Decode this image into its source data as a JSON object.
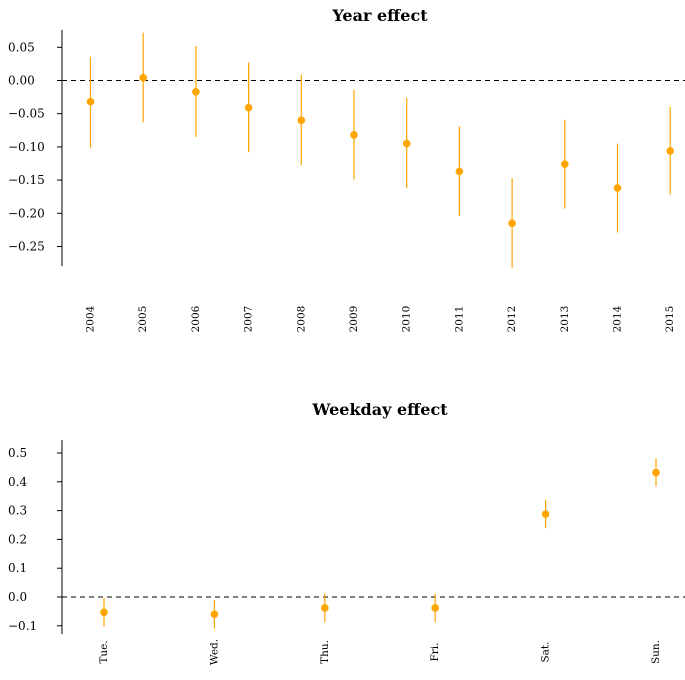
{
  "colors": {
    "marker": "#FFA500",
    "zero_line": "#000000",
    "axis": "#000000"
  },
  "chart_data": [
    {
      "type": "scatter",
      "title": "Year effect",
      "xlabel": "",
      "ylabel": "",
      "categories": [
        "2004",
        "2005",
        "2006",
        "2007",
        "2008",
        "2009",
        "2010",
        "2011",
        "2012",
        "2013",
        "2014",
        "2015"
      ],
      "values": [
        -0.032,
        0.004,
        -0.017,
        -0.041,
        -0.06,
        -0.082,
        -0.095,
        -0.137,
        -0.215,
        -0.126,
        -0.162,
        -0.106
      ],
      "ci_lower": [
        -0.101,
        -0.063,
        -0.085,
        -0.108,
        -0.127,
        -0.149,
        -0.162,
        -0.204,
        -0.282,
        -0.193,
        -0.229,
        -0.172
      ],
      "ci_upper": [
        0.036,
        0.072,
        0.052,
        0.027,
        0.009,
        -0.014,
        -0.026,
        -0.069,
        -0.147,
        -0.059,
        -0.095,
        -0.04
      ],
      "yticks": [
        0.05,
        0.0,
        -0.05,
        -0.1,
        -0.15,
        -0.2,
        -0.25
      ],
      "ytick_labels": [
        "0.05",
        "0.00",
        "−0.05",
        "−0.10",
        "−0.15",
        "−0.20",
        "−0.25"
      ],
      "ylim": [
        -0.29,
        0.075
      ],
      "reference_line": 0,
      "grid": false
    },
    {
      "type": "scatter",
      "title": "Weekday effect",
      "xlabel": "",
      "ylabel": "",
      "categories": [
        "Tue.",
        "Wed.",
        "Thu.",
        "Fri.",
        "Sat.",
        "Sun."
      ],
      "values": [
        -0.053,
        -0.06,
        -0.038,
        -0.038,
        0.288,
        0.432
      ],
      "ci_lower": [
        -0.102,
        -0.11,
        -0.087,
        -0.087,
        0.239,
        0.383
      ],
      "ci_upper": [
        -0.004,
        -0.01,
        0.011,
        0.011,
        0.337,
        0.481
      ],
      "yticks": [
        0.5,
        0.4,
        0.3,
        0.2,
        0.1,
        0.0,
        -0.1
      ],
      "ytick_labels": [
        "0.5",
        "0.4",
        "0.3",
        "0.2",
        "0.1",
        "0.0",
        "−0.1"
      ],
      "ylim": [
        -0.12,
        0.52
      ],
      "reference_line": 0,
      "grid": false
    }
  ]
}
